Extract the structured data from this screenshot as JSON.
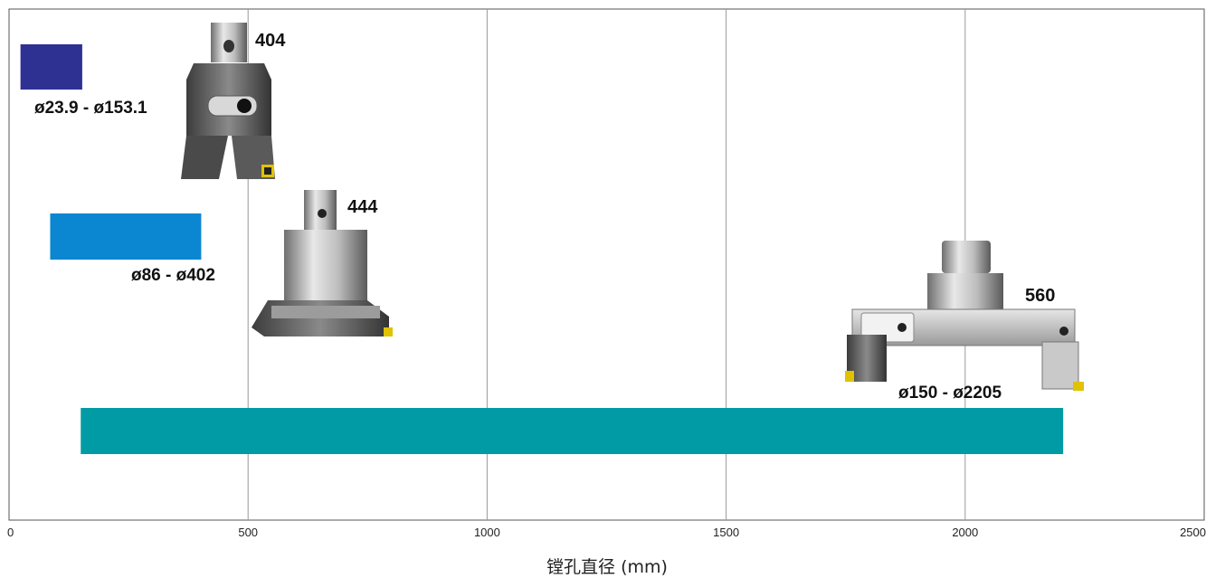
{
  "chart_data": {
    "type": "bar",
    "orientation": "horizontal-range",
    "title": "",
    "xlabel": "镗孔直径 (mm)",
    "ylabel": "",
    "xlim": [
      0,
      2500
    ],
    "xticks": [
      "0",
      "500",
      "1000",
      "1500",
      "2000",
      "2500"
    ],
    "grid": true,
    "series": [
      {
        "model": "404",
        "range_label": "ø23.9 - ø153.1",
        "min": 23.9,
        "max": 153.1,
        "color": "#2e3192"
      },
      {
        "model": "444",
        "range_label": "ø86 - ø402",
        "min": 86,
        "max": 402,
        "color": "#0b86d1"
      },
      {
        "model": "560",
        "range_label": "ø150 - ø2205",
        "min": 150,
        "max": 2205,
        "color": "#009ba4"
      }
    ]
  },
  "images": {
    "tool_404": "boring-head-404-icon",
    "tool_444": "boring-head-444-icon",
    "tool_560": "boring-bar-560-icon"
  }
}
